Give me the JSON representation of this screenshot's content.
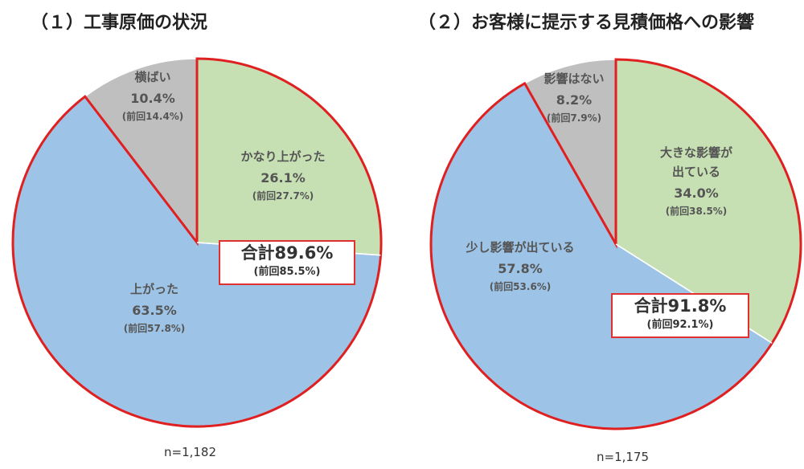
{
  "charts": {
    "c1": {
      "title": "（１）工事原価の状況",
      "n_label": "n=1,182",
      "total": {
        "label": "合計89.6%",
        "prev": "(前回85.5%)"
      },
      "labels": {
        "s0": {
          "name": "かなり上がった",
          "value": "26.1%",
          "prev": "(前回27.7%)"
        },
        "s1": {
          "name": "上がった",
          "value": "63.5%",
          "prev": "(前回57.8%)"
        },
        "s2": {
          "name": "横ばい",
          "value": "10.4%",
          "prev": "(前回14.4%)"
        }
      }
    },
    "c2": {
      "title": "（２）お客様に提示する見積価格への影響",
      "n_label": "n=1,175",
      "total": {
        "label": "合計91.8%",
        "prev": "(前回92.1%)"
      },
      "labels": {
        "s0": {
          "name": "大きな影響が",
          "name2": "出ている",
          "value": "34.0%",
          "prev": "(前回38.5%)"
        },
        "s1": {
          "name": "少し影響が出ている",
          "value": "57.8%",
          "prev": "(前回53.6%)"
        },
        "s2": {
          "name": "影響はない",
          "value": "8.2%",
          "prev": "(前回7.9%)"
        }
      }
    }
  },
  "chart_data": [
    {
      "type": "pie",
      "title": "（１）工事原価の状況",
      "categories": [
        "かなり上がった",
        "上がった",
        "横ばい"
      ],
      "values": [
        26.1,
        63.5,
        10.4
      ],
      "previous_values": [
        27.7,
        57.8,
        14.4
      ],
      "colors": [
        "#c6e0b4",
        "#9dc3e6",
        "#bfbfbf"
      ],
      "highlight_color": "#e02020",
      "highlighted": [
        0,
        1
      ],
      "start": "12 o'clock",
      "direction": "clockwise"
    },
    {
      "type": "pie",
      "title": "（２）お客様に提示する見積価格への影響",
      "categories": [
        "大きな影響が出ている",
        "少し影響が出ている",
        "影響はない"
      ],
      "values": [
        34.0,
        57.8,
        8.2
      ],
      "previous_values": [
        38.5,
        53.6,
        7.9
      ],
      "colors": [
        "#c6e0b4",
        "#9dc3e6",
        "#bfbfbf"
      ],
      "highlight_color": "#e02020",
      "highlighted": [
        0,
        1
      ],
      "start": "12 o'clock",
      "direction": "clockwise"
    }
  ]
}
